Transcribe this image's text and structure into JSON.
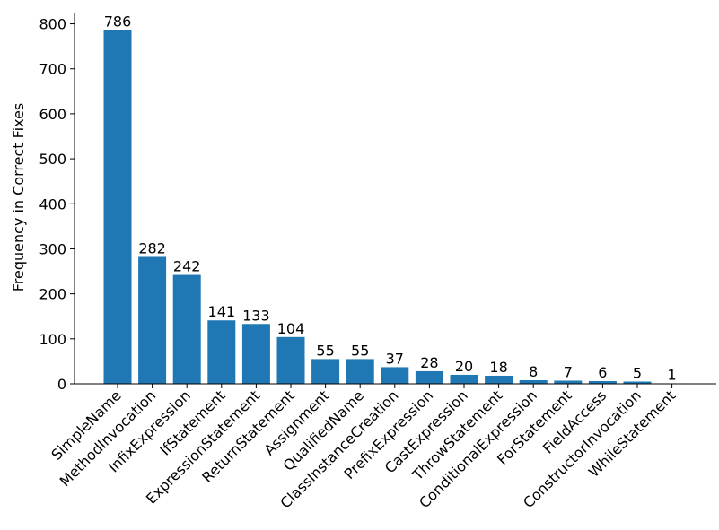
{
  "chart_data": {
    "type": "bar",
    "ylabel": "Frequency in Correct Fixes",
    "categories": [
      "SimpleName",
      "MethodInvocation",
      "InfixExpression",
      "IfStatement",
      "ExpressionStatement",
      "ReturnStatement",
      "Assignment",
      "QualifiedName",
      "ClassInstanceCreation",
      "PrefixExpression",
      "CastExpression",
      "ThrowStatement",
      "ConditionalExpression",
      "ForStatement",
      "FieldAccess",
      "ConstructorInvocation",
      "WhileStatement"
    ],
    "values": [
      786,
      282,
      242,
      141,
      133,
      104,
      55,
      55,
      37,
      28,
      20,
      18,
      8,
      7,
      6,
      5,
      1
    ],
    "color": "#1f77b4",
    "ylim": [
      0,
      825
    ],
    "yticks": [
      0,
      100,
      200,
      300,
      400,
      500,
      600,
      700,
      800
    ],
    "grid": false
  }
}
